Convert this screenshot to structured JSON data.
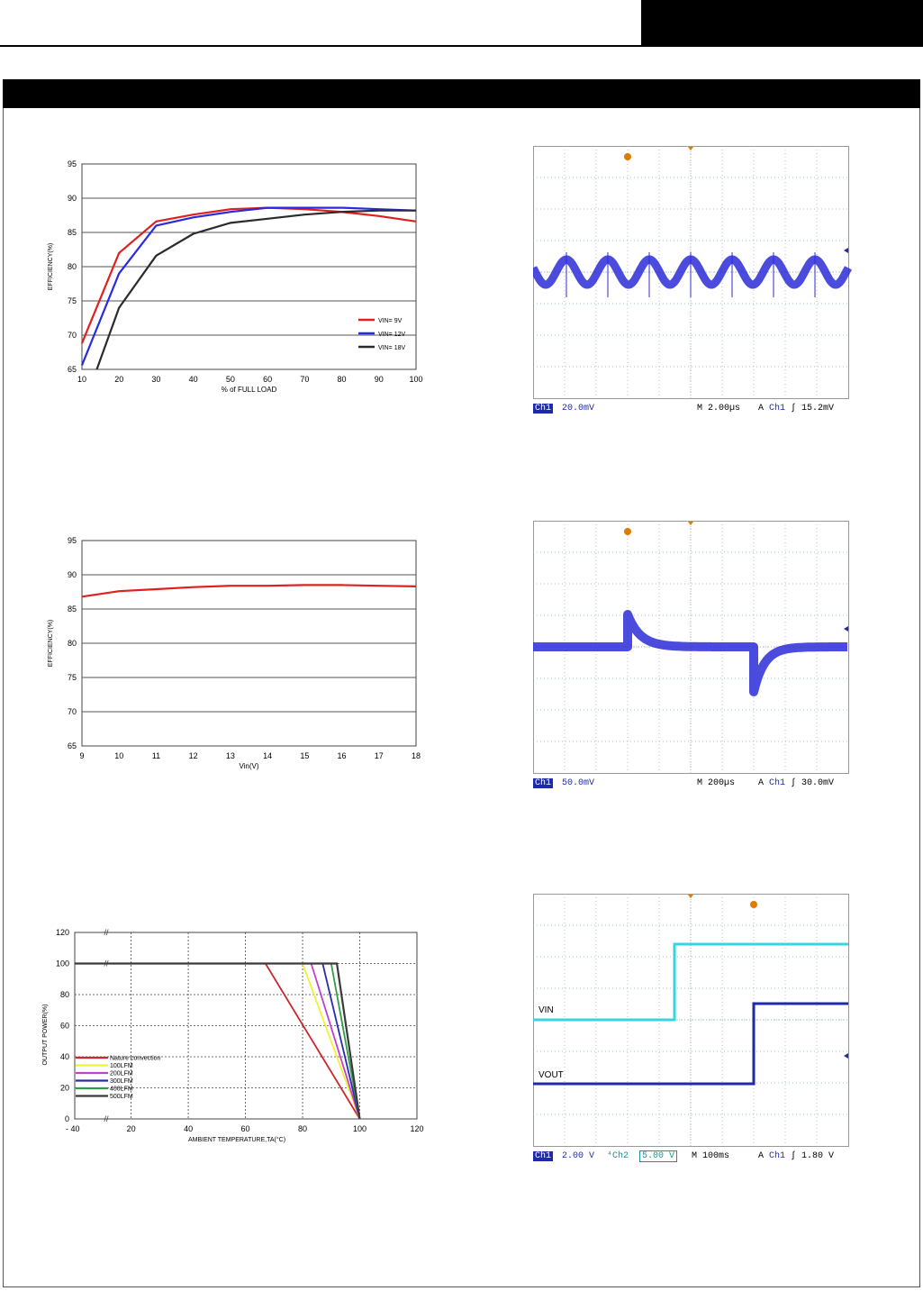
{
  "colors": {
    "red": "#e01f1f",
    "blue": "#2a2ae0",
    "black": "#2b2b2b",
    "scope_trace": "#2b2bd8",
    "scope_cyan": "#36d6e0",
    "marker": "#e07a00"
  },
  "chart_data": [
    {
      "type": "line",
      "xlabel": "% of FULL LOAD",
      "ylabel": "EFFICIENCY(%)",
      "xlim": [
        10,
        100
      ],
      "ylim": [
        65,
        95
      ],
      "xticks": [
        10,
        20,
        30,
        40,
        50,
        60,
        70,
        80,
        90,
        100
      ],
      "yticks": [
        65,
        70,
        75,
        80,
        85,
        90,
        95
      ],
      "grid": "horizontal",
      "legend_position": "bottom-right",
      "series": [
        {
          "name": "VIN= 9V",
          "color": "#e01f1f",
          "x": [
            10,
            20,
            30,
            40,
            50,
            60,
            70,
            80,
            90,
            100
          ],
          "y": [
            68.8,
            82,
            86.6,
            87.6,
            88.4,
            88.6,
            88.4,
            88,
            87.4,
            86.6
          ]
        },
        {
          "name": "VIN= 12V",
          "color": "#2a2ae0",
          "x": [
            10,
            20,
            30,
            40,
            50,
            60,
            70,
            80,
            90,
            100
          ],
          "y": [
            65.6,
            79,
            86,
            87.2,
            88,
            88.6,
            88.6,
            88.6,
            88.4,
            88.2
          ]
        },
        {
          "name": "VIN= 18V",
          "color": "#2b2b2b",
          "x": [
            14,
            20,
            30,
            40,
            50,
            60,
            70,
            80,
            90,
            100
          ],
          "y": [
            65,
            74,
            81.6,
            84.8,
            86.4,
            87,
            87.6,
            88,
            88.2,
            88.2
          ]
        }
      ]
    },
    {
      "type": "line",
      "xlabel": "Vin(V)",
      "ylabel": "EFFICIENCY(%)",
      "xlim": [
        9,
        18
      ],
      "ylim": [
        65,
        95
      ],
      "xticks": [
        9,
        10,
        11,
        12,
        13,
        14,
        15,
        16,
        17,
        18
      ],
      "yticks": [
        65,
        70,
        75,
        80,
        85,
        90,
        95
      ],
      "grid": "horizontal",
      "series": [
        {
          "color": "#e01f1f",
          "x": [
            9,
            10,
            11,
            12,
            13,
            14,
            15,
            16,
            17,
            18
          ],
          "y": [
            86.8,
            87.6,
            87.9,
            88.2,
            88.4,
            88.4,
            88.5,
            88.5,
            88.4,
            88.3
          ]
        }
      ]
    },
    {
      "type": "line",
      "xlabel": "AMBIENT TEMPERATURE,TA(°C)",
      "ylabel": "OUTPUT POWER(%)",
      "xlim": [
        -40,
        120
      ],
      "ylim": [
        0,
        120
      ],
      "xtick_labels": [
        "- 40",
        "20",
        "40",
        "60",
        "80",
        "100",
        "120"
      ],
      "yticks": [
        0,
        20,
        40,
        60,
        80,
        100,
        120
      ],
      "grid": "dashed",
      "legend_position": "bottom-left",
      "series": [
        {
          "name": "Nature convection",
          "color": "#c8282d",
          "x": [
            -40,
            67,
            100
          ],
          "y": [
            100,
            100,
            0
          ]
        },
        {
          "name": "100LFM",
          "color": "#f2f032",
          "x": [
            -40,
            80,
            100
          ],
          "y": [
            100,
            100,
            0
          ]
        },
        {
          "name": "200LFM",
          "color": "#c23fd1",
          "x": [
            -40,
            83,
            100
          ],
          "y": [
            100,
            100,
            0
          ]
        },
        {
          "name": "300LFM",
          "color": "#2a2ab0",
          "x": [
            -40,
            87,
            100
          ],
          "y": [
            100,
            100,
            0
          ]
        },
        {
          "name": "400LFM",
          "color": "#2ea043",
          "x": [
            -40,
            90,
            100
          ],
          "y": [
            100,
            100,
            0
          ]
        },
        {
          "name": "500LFM",
          "color": "#3a3a3a",
          "x": [
            -40,
            92,
            100
          ],
          "y": [
            100,
            100,
            0
          ]
        }
      ]
    }
  ],
  "scopes": [
    {
      "status": {
        "ch1_label": "Ch1",
        "ch1_scale": "20.0mV",
        "timebase": "2.00µs",
        "trigger": "Ch1",
        "trigger_level": "15.2mV"
      }
    },
    {
      "status": {
        "ch1_label": "Ch1",
        "ch1_scale": "50.0mV",
        "timebase": "200µs",
        "trigger": "Ch1",
        "trigger_level": "30.0mV"
      }
    },
    {
      "status": {
        "ch1_label": "Ch1",
        "ch1_scale": "2.00 V",
        "ch2_label": "Ch2",
        "ch2_scale": "5.00 V",
        "timebase": "100ms",
        "trigger": "Ch1",
        "trigger_level": "1.80 V"
      },
      "labels": {
        "vin": "VIN",
        "vout": "VOUT"
      }
    }
  ]
}
